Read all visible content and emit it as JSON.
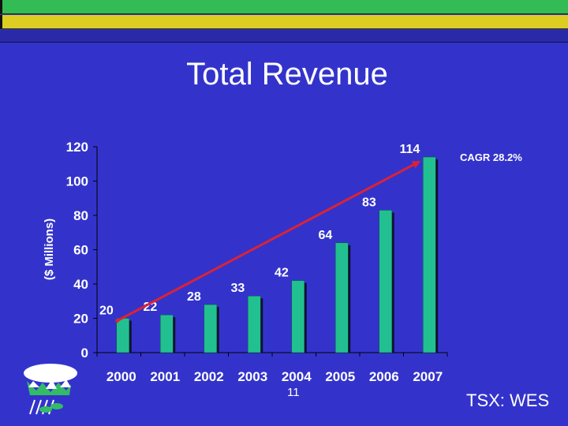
{
  "slide": {
    "title": "Total Revenue",
    "cagr": "CAGR 28.2%",
    "page_number": "11",
    "ticker": "TSX: WES"
  },
  "colors": {
    "background": "#3333cc",
    "bar": "#22c090",
    "trend_line": "#dd2233"
  },
  "chart_data": {
    "type": "bar",
    "categories": [
      "2000",
      "2001",
      "2002",
      "2003",
      "2004",
      "2005",
      "2006",
      "2007"
    ],
    "values": [
      20,
      22,
      28,
      33,
      42,
      64,
      83,
      114
    ],
    "data_labels": [
      "20",
      "22",
      "28",
      "33",
      "42",
      "64",
      "83",
      "114"
    ],
    "title": "Total Revenue",
    "xlabel": "",
    "ylabel": "($ Millions)",
    "ylim": [
      0,
      120
    ],
    "yticks": [
      0,
      20,
      40,
      60,
      80,
      100,
      120
    ],
    "grid": false,
    "trend_line": {
      "from": "2000",
      "to": "2007",
      "arrow": true
    }
  }
}
